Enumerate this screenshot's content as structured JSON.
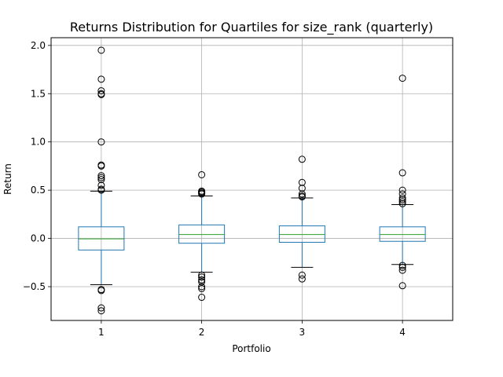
{
  "chart_data": {
    "type": "boxplot",
    "title": "Returns Distribution for Quartiles for size_rank (quarterly)",
    "xlabel": "Portfolio",
    "ylabel": "Return",
    "categories": [
      "1",
      "2",
      "3",
      "4"
    ],
    "ylim": [
      -0.85,
      2.08
    ],
    "yticks": [
      -0.5,
      0.0,
      0.5,
      1.0,
      1.5,
      2.0
    ],
    "ytick_labels": [
      "−0.5",
      "0.0",
      "0.5",
      "1.0",
      "1.5",
      "2.0"
    ],
    "grid": true,
    "boxes": [
      {
        "name": "1",
        "q1": -0.12,
        "median": -0.005,
        "q3": 0.12,
        "whisker_low": -0.48,
        "whisker_high": 0.49,
        "outliers": [
          1.95,
          1.65,
          1.53,
          1.5,
          1.49,
          1.0,
          0.76,
          0.75,
          0.65,
          0.63,
          0.61,
          0.55,
          0.51,
          0.5,
          -0.53,
          -0.54,
          -0.72,
          -0.75
        ]
      },
      {
        "name": "2",
        "q1": -0.05,
        "median": 0.04,
        "q3": 0.14,
        "whisker_low": -0.35,
        "whisker_high": 0.44,
        "outliers": [
          0.66,
          0.49,
          0.48,
          0.47,
          0.46,
          -0.38,
          -0.4,
          -0.43,
          -0.45,
          -0.5,
          -0.52,
          -0.61
        ]
      },
      {
        "name": "3",
        "q1": -0.04,
        "median": 0.04,
        "q3": 0.13,
        "whisker_low": -0.3,
        "whisker_high": 0.42,
        "outliers": [
          0.82,
          0.58,
          0.52,
          0.46,
          0.44,
          0.43,
          -0.38,
          -0.42
        ]
      },
      {
        "name": "4",
        "q1": -0.03,
        "median": 0.04,
        "q3": 0.12,
        "whisker_low": -0.27,
        "whisker_high": 0.35,
        "outliers": [
          1.66,
          0.68,
          0.5,
          0.46,
          0.42,
          0.4,
          0.38,
          0.36,
          -0.28,
          -0.3,
          -0.33,
          -0.49
        ]
      }
    ],
    "colors": {
      "box": "#1f77b4",
      "median": "#2ca02c",
      "whisker": "#1f77b4",
      "cap": "#000000",
      "outlier": "#000000",
      "grid": "#b0b0b0",
      "axes": "#000000"
    }
  }
}
